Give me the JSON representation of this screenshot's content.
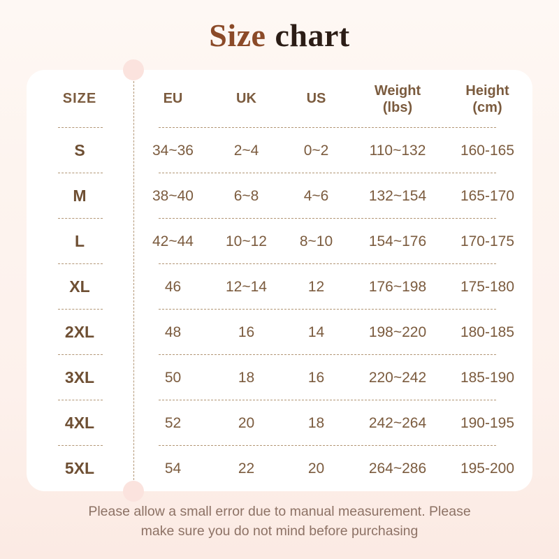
{
  "title": {
    "part1": "Size",
    "part2": "chart"
  },
  "colors": {
    "title_accent": "#8b4a28",
    "title_dark": "#2b1d16",
    "background_top": "#fef8f4",
    "background_bottom": "#fbeae3",
    "card": "#ffffff",
    "table_text": "#7b5b3e",
    "label_text": "#6e4f33",
    "dash": "#b29675",
    "decorative_dot": "#fbe3de",
    "footer_text": "#8d7265"
  },
  "table": {
    "size_header": "SIZE",
    "columns": [
      {
        "label": "EU"
      },
      {
        "label": "UK"
      },
      {
        "label": "US"
      },
      {
        "label": "Weight",
        "sub": "(lbs)"
      },
      {
        "label": "Height",
        "sub": "(cm)"
      }
    ],
    "rows": [
      {
        "size": "S",
        "eu": "34~36",
        "uk": "2~4",
        "us": "0~2",
        "weight": "110~132",
        "height": "160-165"
      },
      {
        "size": "M",
        "eu": "38~40",
        "uk": "6~8",
        "us": "4~6",
        "weight": "132~154",
        "height": "165-170"
      },
      {
        "size": "L",
        "eu": "42~44",
        "uk": "10~12",
        "us": "8~10",
        "weight": "154~176",
        "height": "170-175"
      },
      {
        "size": "XL",
        "eu": "46",
        "uk": "12~14",
        "us": "12",
        "weight": "176~198",
        "height": "175-180"
      },
      {
        "size": "2XL",
        "eu": "48",
        "uk": "16",
        "us": "14",
        "weight": "198~220",
        "height": "180-185"
      },
      {
        "size": "3XL",
        "eu": "50",
        "uk": "18",
        "us": "16",
        "weight": "220~242",
        "height": "185-190"
      },
      {
        "size": "4XL",
        "eu": "52",
        "uk": "20",
        "us": "18",
        "weight": "242~264",
        "height": "190-195"
      },
      {
        "size": "5XL",
        "eu": "54",
        "uk": "22",
        "us": "20",
        "weight": "264~286",
        "height": "195-200"
      }
    ]
  },
  "footer": {
    "line1": "Please allow a small error due to manual measurement. Please",
    "line2": "make sure you do not mind before purchasing"
  }
}
